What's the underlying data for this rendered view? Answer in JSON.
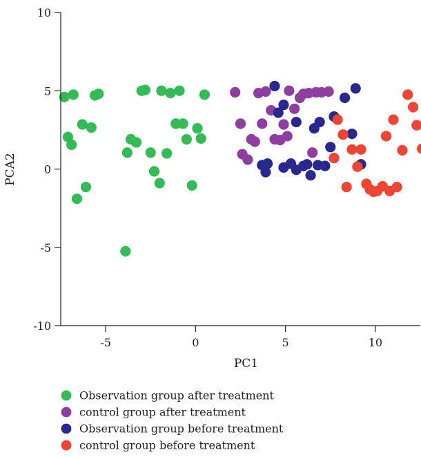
{
  "chart_data": {
    "type": "scatter",
    "title": "",
    "xlabel": "PC1",
    "ylabel": "PCA2",
    "xlim": [
      -7.5,
      12.5
    ],
    "ylim": [
      -10,
      10
    ],
    "xticks": [
      -5,
      0,
      5,
      10
    ],
    "yticks": [
      -10,
      -5,
      0,
      5,
      10
    ],
    "xtick_labels": [
      "-5",
      "0",
      "5",
      "10"
    ],
    "ytick_labels": [
      "-10",
      "-5",
      "0",
      "5",
      "10"
    ],
    "grid": false,
    "legend_position": "bottom-left",
    "series": [
      {
        "name": "Observation group after treatment",
        "color": "#33bb55",
        "points": [
          [
            -7.3,
            4.6
          ],
          [
            -6.8,
            4.75
          ],
          [
            -5.6,
            4.7
          ],
          [
            -5.4,
            4.8
          ],
          [
            -3.0,
            5.0
          ],
          [
            -2.8,
            5.05
          ],
          [
            -1.9,
            5.0
          ],
          [
            -1.4,
            4.85
          ],
          [
            -0.9,
            5.0
          ],
          [
            0.5,
            4.75
          ],
          [
            -7.1,
            2.05
          ],
          [
            -6.9,
            1.55
          ],
          [
            -6.3,
            2.85
          ],
          [
            -5.8,
            2.65
          ],
          [
            -3.6,
            1.9
          ],
          [
            -3.3,
            1.7
          ],
          [
            -3.8,
            1.05
          ],
          [
            -2.5,
            1.05
          ],
          [
            -1.6,
            1.0
          ],
          [
            -1.1,
            2.9
          ],
          [
            -0.7,
            2.9
          ],
          [
            -0.5,
            1.9
          ],
          [
            0.1,
            2.6
          ],
          [
            0.3,
            1.95
          ],
          [
            -6.1,
            -1.15
          ],
          [
            -6.6,
            -1.9
          ],
          [
            -2.3,
            -0.15
          ],
          [
            -2.0,
            -0.9
          ],
          [
            -0.2,
            -1.05
          ],
          [
            -3.9,
            -5.25
          ]
        ]
      },
      {
        "name": "control group after treatment",
        "color": "#8e3ea0",
        "points": [
          [
            2.2,
            4.9
          ],
          [
            3.5,
            4.85
          ],
          [
            3.9,
            4.95
          ],
          [
            5.2,
            5.0
          ],
          [
            5.8,
            4.55
          ],
          [
            6.0,
            4.8
          ],
          [
            6.3,
            4.85
          ],
          [
            6.7,
            4.9
          ],
          [
            7.0,
            4.9
          ],
          [
            7.4,
            4.95
          ],
          [
            4.2,
            3.75
          ],
          [
            5.5,
            3.85
          ],
          [
            2.5,
            2.9
          ],
          [
            3.7,
            2.9
          ],
          [
            4.9,
            2.85
          ],
          [
            3.1,
            1.9
          ],
          [
            3.3,
            1.75
          ],
          [
            4.4,
            1.9
          ],
          [
            4.7,
            1.85
          ],
          [
            5.1,
            2.1
          ],
          [
            6.5,
            1.05
          ],
          [
            2.6,
            0.95
          ],
          [
            2.9,
            0.6
          ]
        ]
      },
      {
        "name": "Observation group before treatment",
        "color": "#282890",
        "points": [
          [
            4.4,
            5.3
          ],
          [
            8.9,
            5.15
          ],
          [
            8.3,
            4.55
          ],
          [
            4.9,
            4.1
          ],
          [
            4.6,
            3.6
          ],
          [
            5.6,
            3.0
          ],
          [
            7.7,
            3.35
          ],
          [
            6.9,
            3.0
          ],
          [
            6.6,
            2.6
          ],
          [
            8.7,
            2.25
          ],
          [
            7.5,
            1.4
          ],
          [
            3.7,
            0.25
          ],
          [
            4.0,
            0.35
          ],
          [
            3.9,
            -0.2
          ],
          [
            4.9,
            0.1
          ],
          [
            5.3,
            0.35
          ],
          [
            5.6,
            -0.05
          ],
          [
            6.2,
            0.3
          ],
          [
            6.4,
            -0.4
          ],
          [
            6.8,
            0.25
          ],
          [
            7.2,
            0.2
          ],
          [
            9.2,
            0.3
          ],
          [
            6.0,
            0.2
          ]
        ]
      },
      {
        "name": "control group before treatment",
        "color": "#ee4433",
        "points": [
          [
            11.8,
            4.75
          ],
          [
            12.1,
            3.95
          ],
          [
            12.3,
            2.8
          ],
          [
            11.0,
            3.15
          ],
          [
            7.9,
            3.15
          ],
          [
            8.2,
            2.2
          ],
          [
            10.6,
            2.1
          ],
          [
            8.7,
            1.25
          ],
          [
            9.2,
            1.25
          ],
          [
            11.5,
            1.2
          ],
          [
            12.6,
            1.3
          ],
          [
            7.7,
            0.7
          ],
          [
            9.0,
            0.15
          ],
          [
            8.4,
            -1.15
          ],
          [
            9.5,
            -0.95
          ],
          [
            9.7,
            -1.3
          ],
          [
            9.9,
            -1.45
          ],
          [
            10.1,
            -1.4
          ],
          [
            10.4,
            -1.1
          ],
          [
            10.8,
            -1.4
          ],
          [
            11.2,
            -1.15
          ]
        ]
      }
    ]
  }
}
